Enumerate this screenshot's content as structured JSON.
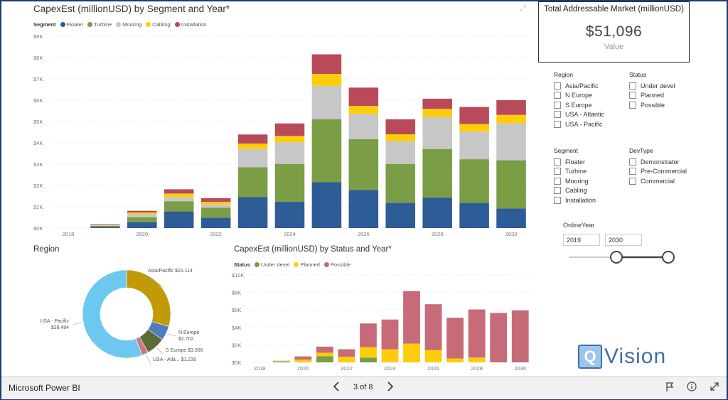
{
  "app_name": "Microsoft Power BI",
  "pager": {
    "text": "3 of 8",
    "prev_icon": "chevron-left-icon",
    "next_icon": "chevron-right-icon"
  },
  "footer_icons": [
    "flag-icon",
    "info-icon",
    "expand-icon"
  ],
  "kpi": {
    "title": "Total Addressable Market (millionUSD)",
    "value": "$51,096",
    "label": "Value"
  },
  "slicers": {
    "region": {
      "title": "Region",
      "options": [
        "Asia/Pacific",
        "N Europe",
        "S Europe",
        "USA - Atlantic",
        "USA - Pacific"
      ]
    },
    "status": {
      "title": "Status",
      "options": [
        "Under devel",
        "Planned",
        "Possible"
      ]
    },
    "segment": {
      "title": "Segment",
      "options": [
        "Floater",
        "Turbine",
        "Mooring",
        "Cabling",
        "Installation"
      ]
    },
    "devtype": {
      "title": "DevType",
      "options": [
        "Demonstrator",
        "Pre-Commercial",
        "Commercial"
      ]
    },
    "onlineyear": {
      "title": "OnlineYear",
      "from": "2019",
      "to": "2030",
      "range": [
        2019,
        2030
      ]
    }
  },
  "logo": {
    "letter": "Q",
    "text": "Vision"
  },
  "chart_data": [
    {
      "id": "segment",
      "type": "bar",
      "stacked": true,
      "title": "CapexEst (millionUSD) by Segment and Year*",
      "legend_title": "Segment",
      "x": [
        2018,
        2019,
        2020,
        2021,
        2022,
        2023,
        2024,
        2025,
        2026,
        2027,
        2028,
        2029,
        2030
      ],
      "xticks": [
        "2018",
        "2020",
        "2022",
        "2024",
        "2026",
        "2028",
        "2030"
      ],
      "yticks": [
        "$0K",
        "$1K",
        "$2K",
        "$3K",
        "$4K",
        "$5K",
        "$6K",
        "$7K",
        "$8K",
        "$9K"
      ],
      "ylim": [
        0,
        9000
      ],
      "series": [
        {
          "name": "Floater",
          "color": "#2e5c96",
          "values": [
            0,
            60,
            280,
            780,
            490,
            1450,
            1230,
            2150,
            1790,
            1180,
            1430,
            1180,
            920
          ]
        },
        {
          "name": "Turbine",
          "color": "#7a9d45",
          "values": [
            0,
            40,
            230,
            480,
            460,
            1400,
            1780,
            2960,
            2380,
            1830,
            2280,
            2050,
            2260
          ]
        },
        {
          "name": "Mooring",
          "color": "#c7c7c7",
          "values": [
            0,
            30,
            140,
            200,
            160,
            860,
            1020,
            1560,
            1180,
            1070,
            1500,
            1290,
            1730
          ]
        },
        {
          "name": "Cabling",
          "color": "#fdcd0a",
          "values": [
            0,
            20,
            80,
            160,
            120,
            250,
            290,
            560,
            380,
            320,
            380,
            360,
            400
          ]
        },
        {
          "name": "Installation",
          "color": "#b94a5a",
          "values": [
            0,
            30,
            80,
            200,
            170,
            430,
            590,
            920,
            860,
            700,
            480,
            800,
            690
          ]
        }
      ]
    },
    {
      "id": "status",
      "type": "bar",
      "stacked": true,
      "title": "CapexEst (millionUSD) by Status and Year*",
      "legend_title": "Status",
      "x": [
        2018,
        2019,
        2020,
        2021,
        2022,
        2023,
        2024,
        2025,
        2026,
        2027,
        2028,
        2029,
        2030
      ],
      "xticks": [
        "2018",
        "2020",
        "2022",
        "2024",
        "2026",
        "2028",
        "2030"
      ],
      "yticks": [
        "$0K",
        "$2K",
        "$4K",
        "$6K",
        "$8K",
        "$10K"
      ],
      "ylim": [
        0,
        10000
      ],
      "series": [
        {
          "name": "Under devel",
          "color": "#7a9d45",
          "values": [
            0,
            100,
            0,
            700,
            0,
            550,
            0,
            0,
            0,
            0,
            0,
            0,
            0
          ]
        },
        {
          "name": "Planned",
          "color": "#fdcd0a",
          "values": [
            0,
            50,
            300,
            400,
            650,
            1200,
            1500,
            2150,
            1400,
            450,
            550,
            0,
            0
          ]
        },
        {
          "name": "Possible",
          "color": "#c66b78",
          "values": [
            0,
            30,
            380,
            700,
            850,
            2700,
            3400,
            6000,
            5250,
            4650,
            5500,
            5650,
            5950
          ]
        }
      ]
    },
    {
      "id": "region",
      "type": "pie",
      "donut": true,
      "title": "Region",
      "slices": [
        {
          "name": "Asia/Pacific",
          "value": 15114,
          "label": "$15.114",
          "color": "#c19a0a"
        },
        {
          "name": "N Europe",
          "value": 2702,
          "label": "$2.702",
          "color": "#4d7cc0"
        },
        {
          "name": "S Europe",
          "value": 3566,
          "label": "$3.566",
          "color": "#5c6b3a"
        },
        {
          "name": "USA - Atla...",
          "value": 1230,
          "label": "$1.230",
          "color": "#c9797f"
        },
        {
          "name": "USA - Pacific",
          "value": 28484,
          "label": "$28.484",
          "color": "#6dc8f0"
        }
      ]
    }
  ]
}
